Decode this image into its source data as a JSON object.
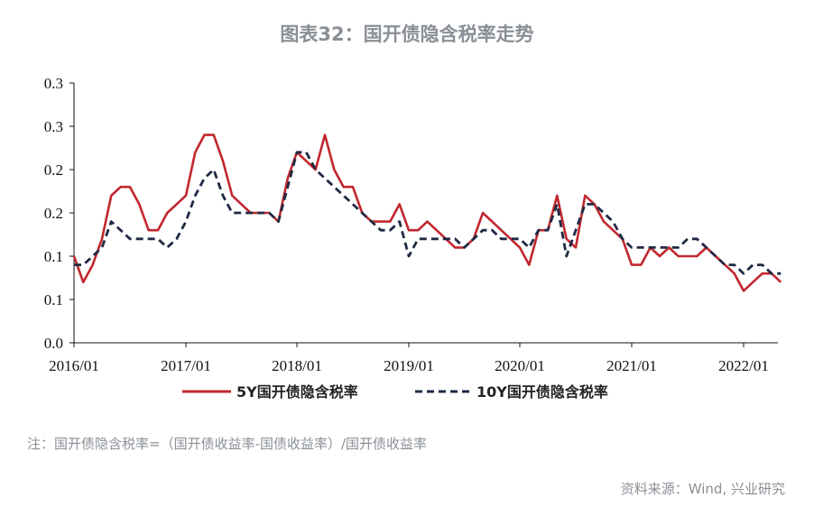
{
  "title": "图表32：国开债隐含税率走势",
  "note": "注：国开债隐含税率=（国开债收益率-国债收益率）/国开债收益率",
  "source": "资料来源：Wind, 兴业研究",
  "colors": {
    "series_5y": "#c1272d",
    "series_10y": "#1f2a44",
    "axis": "#111111"
  },
  "chart_data": {
    "type": "line",
    "title": "图表32：国开债隐含税率走势",
    "xlabel": "",
    "ylabel": "",
    "x_tick_labels": [
      "2016/01",
      "2017/01",
      "2018/01",
      "2019/01",
      "2020/01",
      "2021/01",
      "2022/01"
    ],
    "y_tick_labels": [
      "0.0",
      "0.1",
      "0.1",
      "0.2",
      "0.2",
      "0.3",
      "0.3"
    ],
    "ylim": [
      0,
      0.3
    ],
    "xlim": [
      "2016/01",
      "2022/05"
    ],
    "grid": false,
    "legend": "bottom",
    "series": [
      {
        "name": "5Y国开债隐含税率",
        "style": "solid",
        "points": [
          [
            "2016/01",
            0.1
          ],
          [
            "2016/02",
            0.07
          ],
          [
            "2016/03",
            0.09
          ],
          [
            "2016/04",
            0.12
          ],
          [
            "2016/05",
            0.17
          ],
          [
            "2016/06",
            0.18
          ],
          [
            "2016/07",
            0.18
          ],
          [
            "2016/08",
            0.16
          ],
          [
            "2016/09",
            0.13
          ],
          [
            "2016/10",
            0.13
          ],
          [
            "2016/11",
            0.15
          ],
          [
            "2016/12",
            0.16
          ],
          [
            "2017/01",
            0.17
          ],
          [
            "2017/02",
            0.22
          ],
          [
            "2017/03",
            0.24
          ],
          [
            "2017/04",
            0.24
          ],
          [
            "2017/05",
            0.21
          ],
          [
            "2017/06",
            0.17
          ],
          [
            "2017/07",
            0.16
          ],
          [
            "2017/08",
            0.15
          ],
          [
            "2017/09",
            0.15
          ],
          [
            "2017/10",
            0.15
          ],
          [
            "2017/11",
            0.14
          ],
          [
            "2017/12",
            0.19
          ],
          [
            "2018/01",
            0.22
          ],
          [
            "2018/02",
            0.21
          ],
          [
            "2018/03",
            0.2
          ],
          [
            "2018/04",
            0.24
          ],
          [
            "2018/05",
            0.2
          ],
          [
            "2018/06",
            0.18
          ],
          [
            "2018/07",
            0.18
          ],
          [
            "2018/08",
            0.15
          ],
          [
            "2018/09",
            0.14
          ],
          [
            "2018/10",
            0.14
          ],
          [
            "2018/11",
            0.14
          ],
          [
            "2018/12",
            0.16
          ],
          [
            "2019/01",
            0.13
          ],
          [
            "2019/02",
            0.13
          ],
          [
            "2019/03",
            0.14
          ],
          [
            "2019/04",
            0.13
          ],
          [
            "2019/05",
            0.12
          ],
          [
            "2019/06",
            0.11
          ],
          [
            "2019/07",
            0.11
          ],
          [
            "2019/08",
            0.12
          ],
          [
            "2019/09",
            0.15
          ],
          [
            "2019/10",
            0.14
          ],
          [
            "2019/11",
            0.13
          ],
          [
            "2019/12",
            0.12
          ],
          [
            "2020/01",
            0.11
          ],
          [
            "2020/02",
            0.09
          ],
          [
            "2020/03",
            0.13
          ],
          [
            "2020/04",
            0.13
          ],
          [
            "2020/05",
            0.17
          ],
          [
            "2020/06",
            0.12
          ],
          [
            "2020/07",
            0.11
          ],
          [
            "2020/08",
            0.17
          ],
          [
            "2020/09",
            0.16
          ],
          [
            "2020/10",
            0.14
          ],
          [
            "2020/11",
            0.13
          ],
          [
            "2020/12",
            0.12
          ],
          [
            "2021/01",
            0.09
          ],
          [
            "2021/02",
            0.09
          ],
          [
            "2021/03",
            0.11
          ],
          [
            "2021/04",
            0.1
          ],
          [
            "2021/05",
            0.11
          ],
          [
            "2021/06",
            0.1
          ],
          [
            "2021/07",
            0.1
          ],
          [
            "2021/08",
            0.1
          ],
          [
            "2021/09",
            0.11
          ],
          [
            "2021/10",
            0.1
          ],
          [
            "2021/11",
            0.09
          ],
          [
            "2021/12",
            0.08
          ],
          [
            "2022/01",
            0.06
          ],
          [
            "2022/02",
            0.07
          ],
          [
            "2022/03",
            0.08
          ],
          [
            "2022/04",
            0.08
          ],
          [
            "2022/05",
            0.07
          ]
        ]
      },
      {
        "name": "10Y国开债隐含税率",
        "style": "dashed",
        "points": [
          [
            "2016/01",
            0.09
          ],
          [
            "2016/02",
            0.09
          ],
          [
            "2016/03",
            0.1
          ],
          [
            "2016/04",
            0.11
          ],
          [
            "2016/05",
            0.14
          ],
          [
            "2016/06",
            0.13
          ],
          [
            "2016/07",
            0.12
          ],
          [
            "2016/08",
            0.12
          ],
          [
            "2016/09",
            0.12
          ],
          [
            "2016/10",
            0.12
          ],
          [
            "2016/11",
            0.11
          ],
          [
            "2016/12",
            0.12
          ],
          [
            "2017/01",
            0.14
          ],
          [
            "2017/02",
            0.17
          ],
          [
            "2017/03",
            0.19
          ],
          [
            "2017/04",
            0.2
          ],
          [
            "2017/05",
            0.17
          ],
          [
            "2017/06",
            0.15
          ],
          [
            "2017/07",
            0.15
          ],
          [
            "2017/08",
            0.15
          ],
          [
            "2017/09",
            0.15
          ],
          [
            "2017/10",
            0.15
          ],
          [
            "2017/11",
            0.14
          ],
          [
            "2017/12",
            0.18
          ],
          [
            "2018/01",
            0.22
          ],
          [
            "2018/02",
            0.22
          ],
          [
            "2018/03",
            0.2
          ],
          [
            "2018/04",
            0.19
          ],
          [
            "2018/05",
            0.18
          ],
          [
            "2018/06",
            0.17
          ],
          [
            "2018/07",
            0.16
          ],
          [
            "2018/08",
            0.15
          ],
          [
            "2018/09",
            0.14
          ],
          [
            "2018/10",
            0.13
          ],
          [
            "2018/11",
            0.13
          ],
          [
            "2018/12",
            0.14
          ],
          [
            "2019/01",
            0.1
          ],
          [
            "2019/02",
            0.12
          ],
          [
            "2019/03",
            0.12
          ],
          [
            "2019/04",
            0.12
          ],
          [
            "2019/05",
            0.12
          ],
          [
            "2019/06",
            0.12
          ],
          [
            "2019/07",
            0.11
          ],
          [
            "2019/08",
            0.12
          ],
          [
            "2019/09",
            0.13
          ],
          [
            "2019/10",
            0.13
          ],
          [
            "2019/11",
            0.12
          ],
          [
            "2019/12",
            0.12
          ],
          [
            "2020/01",
            0.12
          ],
          [
            "2020/02",
            0.11
          ],
          [
            "2020/03",
            0.13
          ],
          [
            "2020/04",
            0.13
          ],
          [
            "2020/05",
            0.16
          ],
          [
            "2020/06",
            0.1
          ],
          [
            "2020/07",
            0.13
          ],
          [
            "2020/08",
            0.16
          ],
          [
            "2020/09",
            0.16
          ],
          [
            "2020/10",
            0.15
          ],
          [
            "2020/11",
            0.14
          ],
          [
            "2020/12",
            0.12
          ],
          [
            "2021/01",
            0.11
          ],
          [
            "2021/02",
            0.11
          ],
          [
            "2021/03",
            0.11
          ],
          [
            "2021/04",
            0.11
          ],
          [
            "2021/05",
            0.11
          ],
          [
            "2021/06",
            0.11
          ],
          [
            "2021/07",
            0.12
          ],
          [
            "2021/08",
            0.12
          ],
          [
            "2021/09",
            0.11
          ],
          [
            "2021/10",
            0.1
          ],
          [
            "2021/11",
            0.09
          ],
          [
            "2021/12",
            0.09
          ],
          [
            "2022/01",
            0.08
          ],
          [
            "2022/02",
            0.09
          ],
          [
            "2022/03",
            0.09
          ],
          [
            "2022/04",
            0.08
          ],
          [
            "2022/05",
            0.08
          ]
        ]
      }
    ]
  }
}
